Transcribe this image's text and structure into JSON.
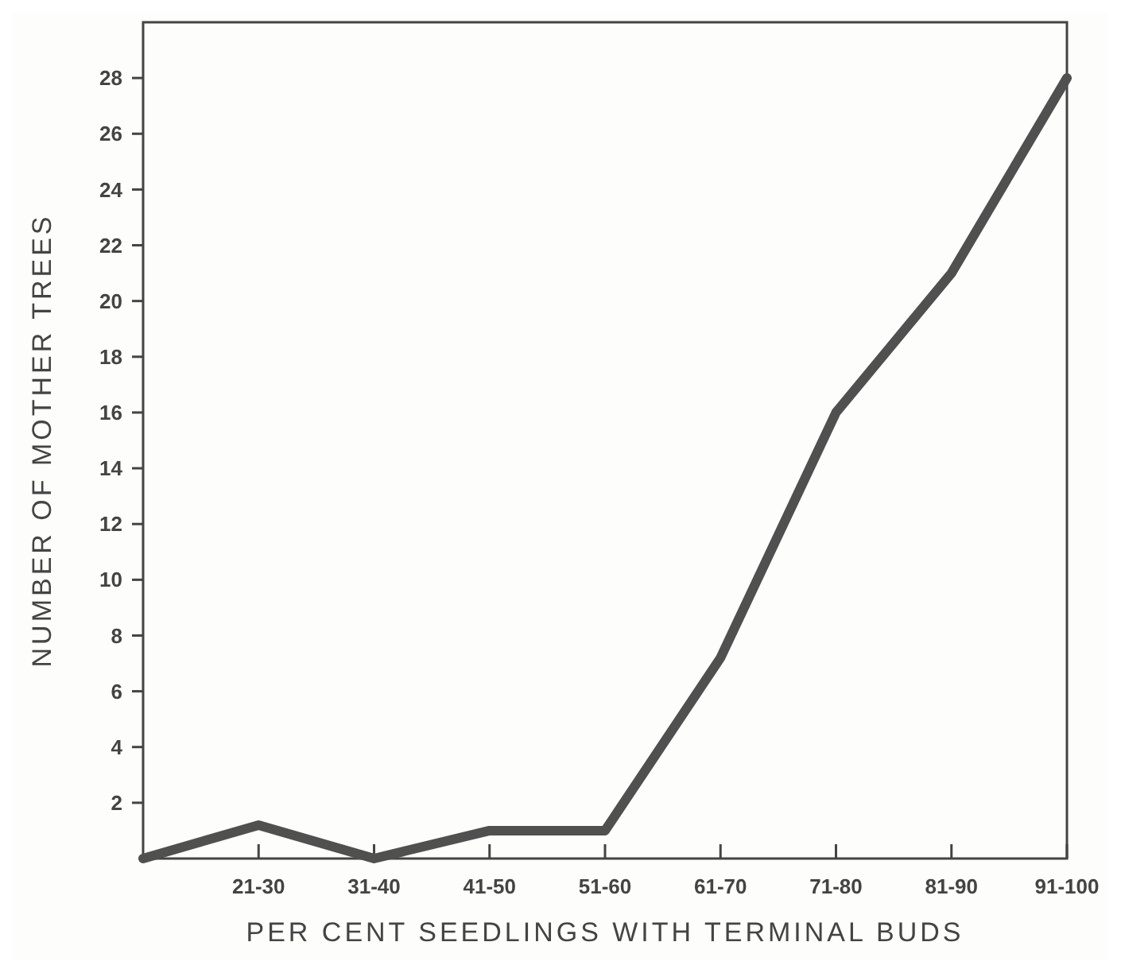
{
  "chart_data": {
    "type": "line",
    "xlabel": "PER CENT SEEDLINGS WITH TERMINAL BUDS",
    "ylabel": "NUMBER OF MOTHER TREES",
    "categories": [
      null,
      "21-30",
      "31-40",
      "41-50",
      "51-60",
      "61-70",
      "71-80",
      "81-90",
      "91-100"
    ],
    "series": [
      {
        "color": "#505050",
        "values": [
          0,
          1.2,
          0,
          1,
          1,
          7.2,
          16,
          21,
          28
        ]
      }
    ],
    "ylim": [
      0,
      30
    ],
    "yticks": [
      2,
      4,
      6,
      8,
      10,
      12,
      14,
      16,
      18,
      20,
      22,
      24,
      26,
      28
    ],
    "grid": false,
    "marker": "none",
    "line_style": "solid"
  }
}
